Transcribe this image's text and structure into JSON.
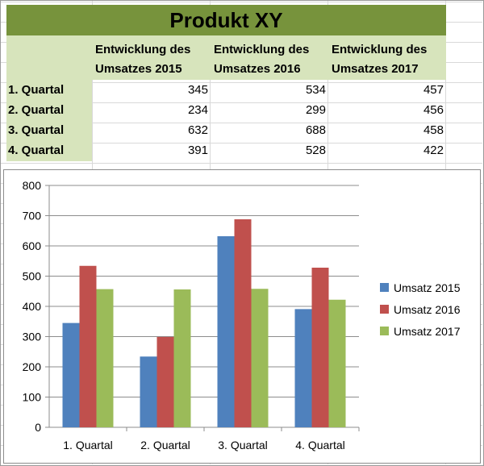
{
  "table": {
    "title": "Produkt XY",
    "headers": [
      [
        "Entwicklung des",
        "Umsatzes 2015"
      ],
      [
        "Entwicklung des",
        "Umsatzes 2016"
      ],
      [
        "Entwicklung des",
        "Umsatzes 2017"
      ]
    ],
    "rows": [
      {
        "label": "1. Quartal",
        "values": [
          "345",
          "534",
          "457"
        ]
      },
      {
        "label": "2. Quartal",
        "values": [
          "234",
          "299",
          "456"
        ]
      },
      {
        "label": "3. Quartal",
        "values": [
          "632",
          "688",
          "458"
        ]
      },
      {
        "label": "4. Quartal",
        "values": [
          "391",
          "528",
          "422"
        ]
      }
    ]
  },
  "colors": {
    "title_bar": "#77933c",
    "header_fill": "#d7e4bc",
    "series": [
      "#4f81bd",
      "#c0504d",
      "#9bbb59"
    ]
  },
  "chart_data": {
    "type": "bar",
    "categories": [
      "1. Quartal",
      "2. Quartal",
      "3. Quartal",
      "4. Quartal"
    ],
    "series": [
      {
        "name": "Umsatz 2015",
        "values": [
          345,
          234,
          632,
          391
        ]
      },
      {
        "name": "Umsatz 2016",
        "values": [
          534,
          299,
          688,
          528
        ]
      },
      {
        "name": "Umsatz 2017",
        "values": [
          457,
          456,
          458,
          422
        ]
      }
    ],
    "ylim": [
      0,
      800
    ],
    "yticks": [
      0,
      100,
      200,
      300,
      400,
      500,
      600,
      700,
      800
    ],
    "grid": true,
    "legend": "right",
    "title": "",
    "xlabel": "",
    "ylabel": ""
  }
}
